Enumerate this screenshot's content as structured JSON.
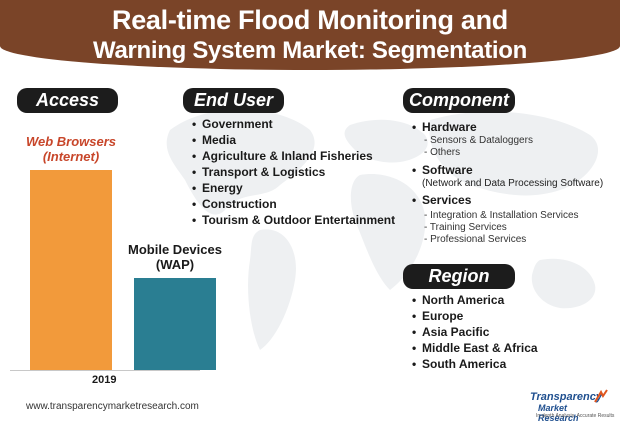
{
  "header": {
    "title_line1": "Real-time Flood Monitoring and",
    "title_line2": "Warning System Market: Segmentation"
  },
  "tags": {
    "access": "Access",
    "end_user": "End User",
    "component": "Component",
    "region": "Region"
  },
  "end_user_items": [
    "Government",
    "Media",
    "Agriculture & Inland Fisheries",
    "Transport & Logistics",
    "Energy",
    "Construction",
    "Tourism & Outdoor Entertainment"
  ],
  "component": {
    "hardware": "Hardware",
    "hardware_subs": [
      "- Sensors & Dataloggers",
      "- Others"
    ],
    "software": "Software",
    "software_note": "(Network and Data Processing Software)",
    "services": "Services",
    "services_subs": [
      "- Integration & Installation Services",
      "- Training Services",
      "- Professional Services"
    ]
  },
  "regions": [
    "North America",
    "Europe",
    "Asia Pacific",
    "Middle East & Africa",
    "South America"
  ],
  "chart_data": {
    "type": "bar",
    "categories": [
      "Web Browsers (Internet)",
      "Mobile Devices (WAP)"
    ],
    "category_lines": [
      [
        "Web Browsers",
        "(Internet)"
      ],
      [
        "Mobile Devices",
        "(WAP)"
      ]
    ],
    "values": [
      100,
      46
    ],
    "colors": [
      "#f29a3b",
      "#2a7e92"
    ],
    "xlabel": "2019",
    "ylim": [
      0,
      100
    ]
  },
  "footer": {
    "url": "www.transparencymarketresearch.com",
    "logo_line1": "Transparency",
    "logo_line2": "Market Research",
    "logo_tagline": "In-depth Analysis. Accurate Results"
  }
}
